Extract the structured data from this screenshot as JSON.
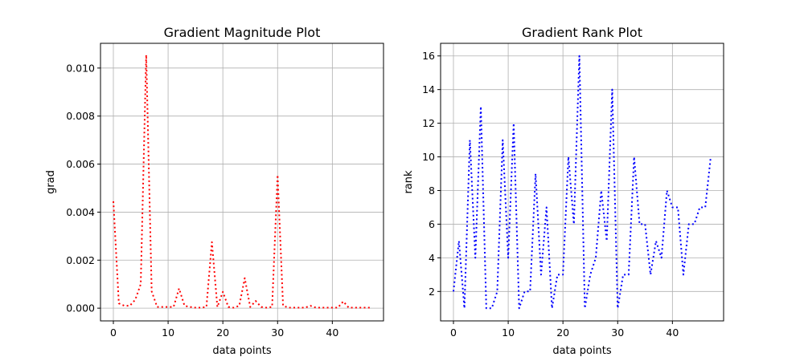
{
  "chart_data": [
    {
      "type": "line",
      "title": "Gradient Magnitude Plot",
      "xlabel": "data points",
      "ylabel": "grad",
      "xlim": [
        -2.35,
        49.35
      ],
      "ylim": [
        -0.00053,
        0.01103
      ],
      "xticks": [
        0,
        10,
        20,
        30,
        40
      ],
      "xtick_labels": [
        "0",
        "10",
        "20",
        "30",
        "40"
      ],
      "yticks": [
        0.0,
        0.002,
        0.004,
        0.006,
        0.008,
        0.01
      ],
      "ytick_labels": [
        "0.000",
        "0.002",
        "0.004",
        "0.006",
        "0.008",
        "0.010"
      ],
      "grid": true,
      "line_style": "dotted",
      "color": "#ff0000",
      "x": [
        0,
        1,
        2,
        3,
        4,
        5,
        6,
        7,
        8,
        9,
        10,
        11,
        12,
        13,
        14,
        15,
        16,
        17,
        18,
        19,
        20,
        21,
        22,
        23,
        24,
        25,
        26,
        27,
        28,
        29,
        30,
        31,
        32,
        33,
        34,
        35,
        36,
        37,
        38,
        39,
        40,
        41,
        42,
        43,
        44,
        45,
        46,
        47
      ],
      "values": [
        0.00445,
        0.0002,
        0.0001,
        0.0001,
        0.00035,
        0.001,
        0.01055,
        0.0007,
        5e-05,
        5e-05,
        5e-05,
        5e-05,
        0.00082,
        0.0001,
        5e-05,
        2e-05,
        2e-05,
        5e-05,
        0.00275,
        5e-05,
        0.00068,
        5e-05,
        2e-05,
        0.0001,
        0.00125,
        5e-05,
        0.0003,
        5e-05,
        2e-05,
        5e-05,
        0.00555,
        0.0001,
        2e-05,
        2e-05,
        2e-05,
        2e-05,
        0.0001,
        2e-05,
        2e-05,
        2e-05,
        2e-05,
        2e-05,
        0.00028,
        2e-05,
        2e-05,
        2e-05,
        2e-05,
        2e-05
      ]
    },
    {
      "type": "line",
      "title": "Gradient Rank Plot",
      "xlabel": "data points",
      "ylabel": "rank",
      "xlim": [
        -2.35,
        49.35
      ],
      "ylim": [
        0.25,
        16.75
      ],
      "xticks": [
        0,
        10,
        20,
        30,
        40
      ],
      "xtick_labels": [
        "0",
        "10",
        "20",
        "30",
        "40"
      ],
      "yticks": [
        2,
        4,
        6,
        8,
        10,
        12,
        14,
        16
      ],
      "ytick_labels": [
        "2",
        "4",
        "6",
        "8",
        "10",
        "12",
        "14",
        "16"
      ],
      "grid": true,
      "line_style": "dotted",
      "color": "#0000ff",
      "x": [
        0,
        1,
        2,
        3,
        4,
        5,
        6,
        7,
        8,
        9,
        10,
        11,
        12,
        13,
        14,
        15,
        16,
        17,
        18,
        19,
        20,
        21,
        22,
        23,
        24,
        25,
        26,
        27,
        28,
        29,
        30,
        31,
        32,
        33,
        34,
        35,
        36,
        37,
        38,
        39,
        40,
        41,
        42,
        43,
        44,
        45,
        46,
        47
      ],
      "values": [
        2,
        5,
        1,
        11,
        4,
        13,
        1,
        1,
        2,
        11,
        4,
        12,
        1,
        2,
        2,
        9,
        3,
        7,
        1,
        3,
        3,
        10,
        6,
        16,
        1,
        3,
        4,
        8,
        5,
        14,
        1,
        3,
        3,
        10,
        6,
        6,
        3,
        5,
        4,
        8,
        7,
        7,
        3,
        6,
        6,
        7,
        7,
        10
      ]
    }
  ]
}
